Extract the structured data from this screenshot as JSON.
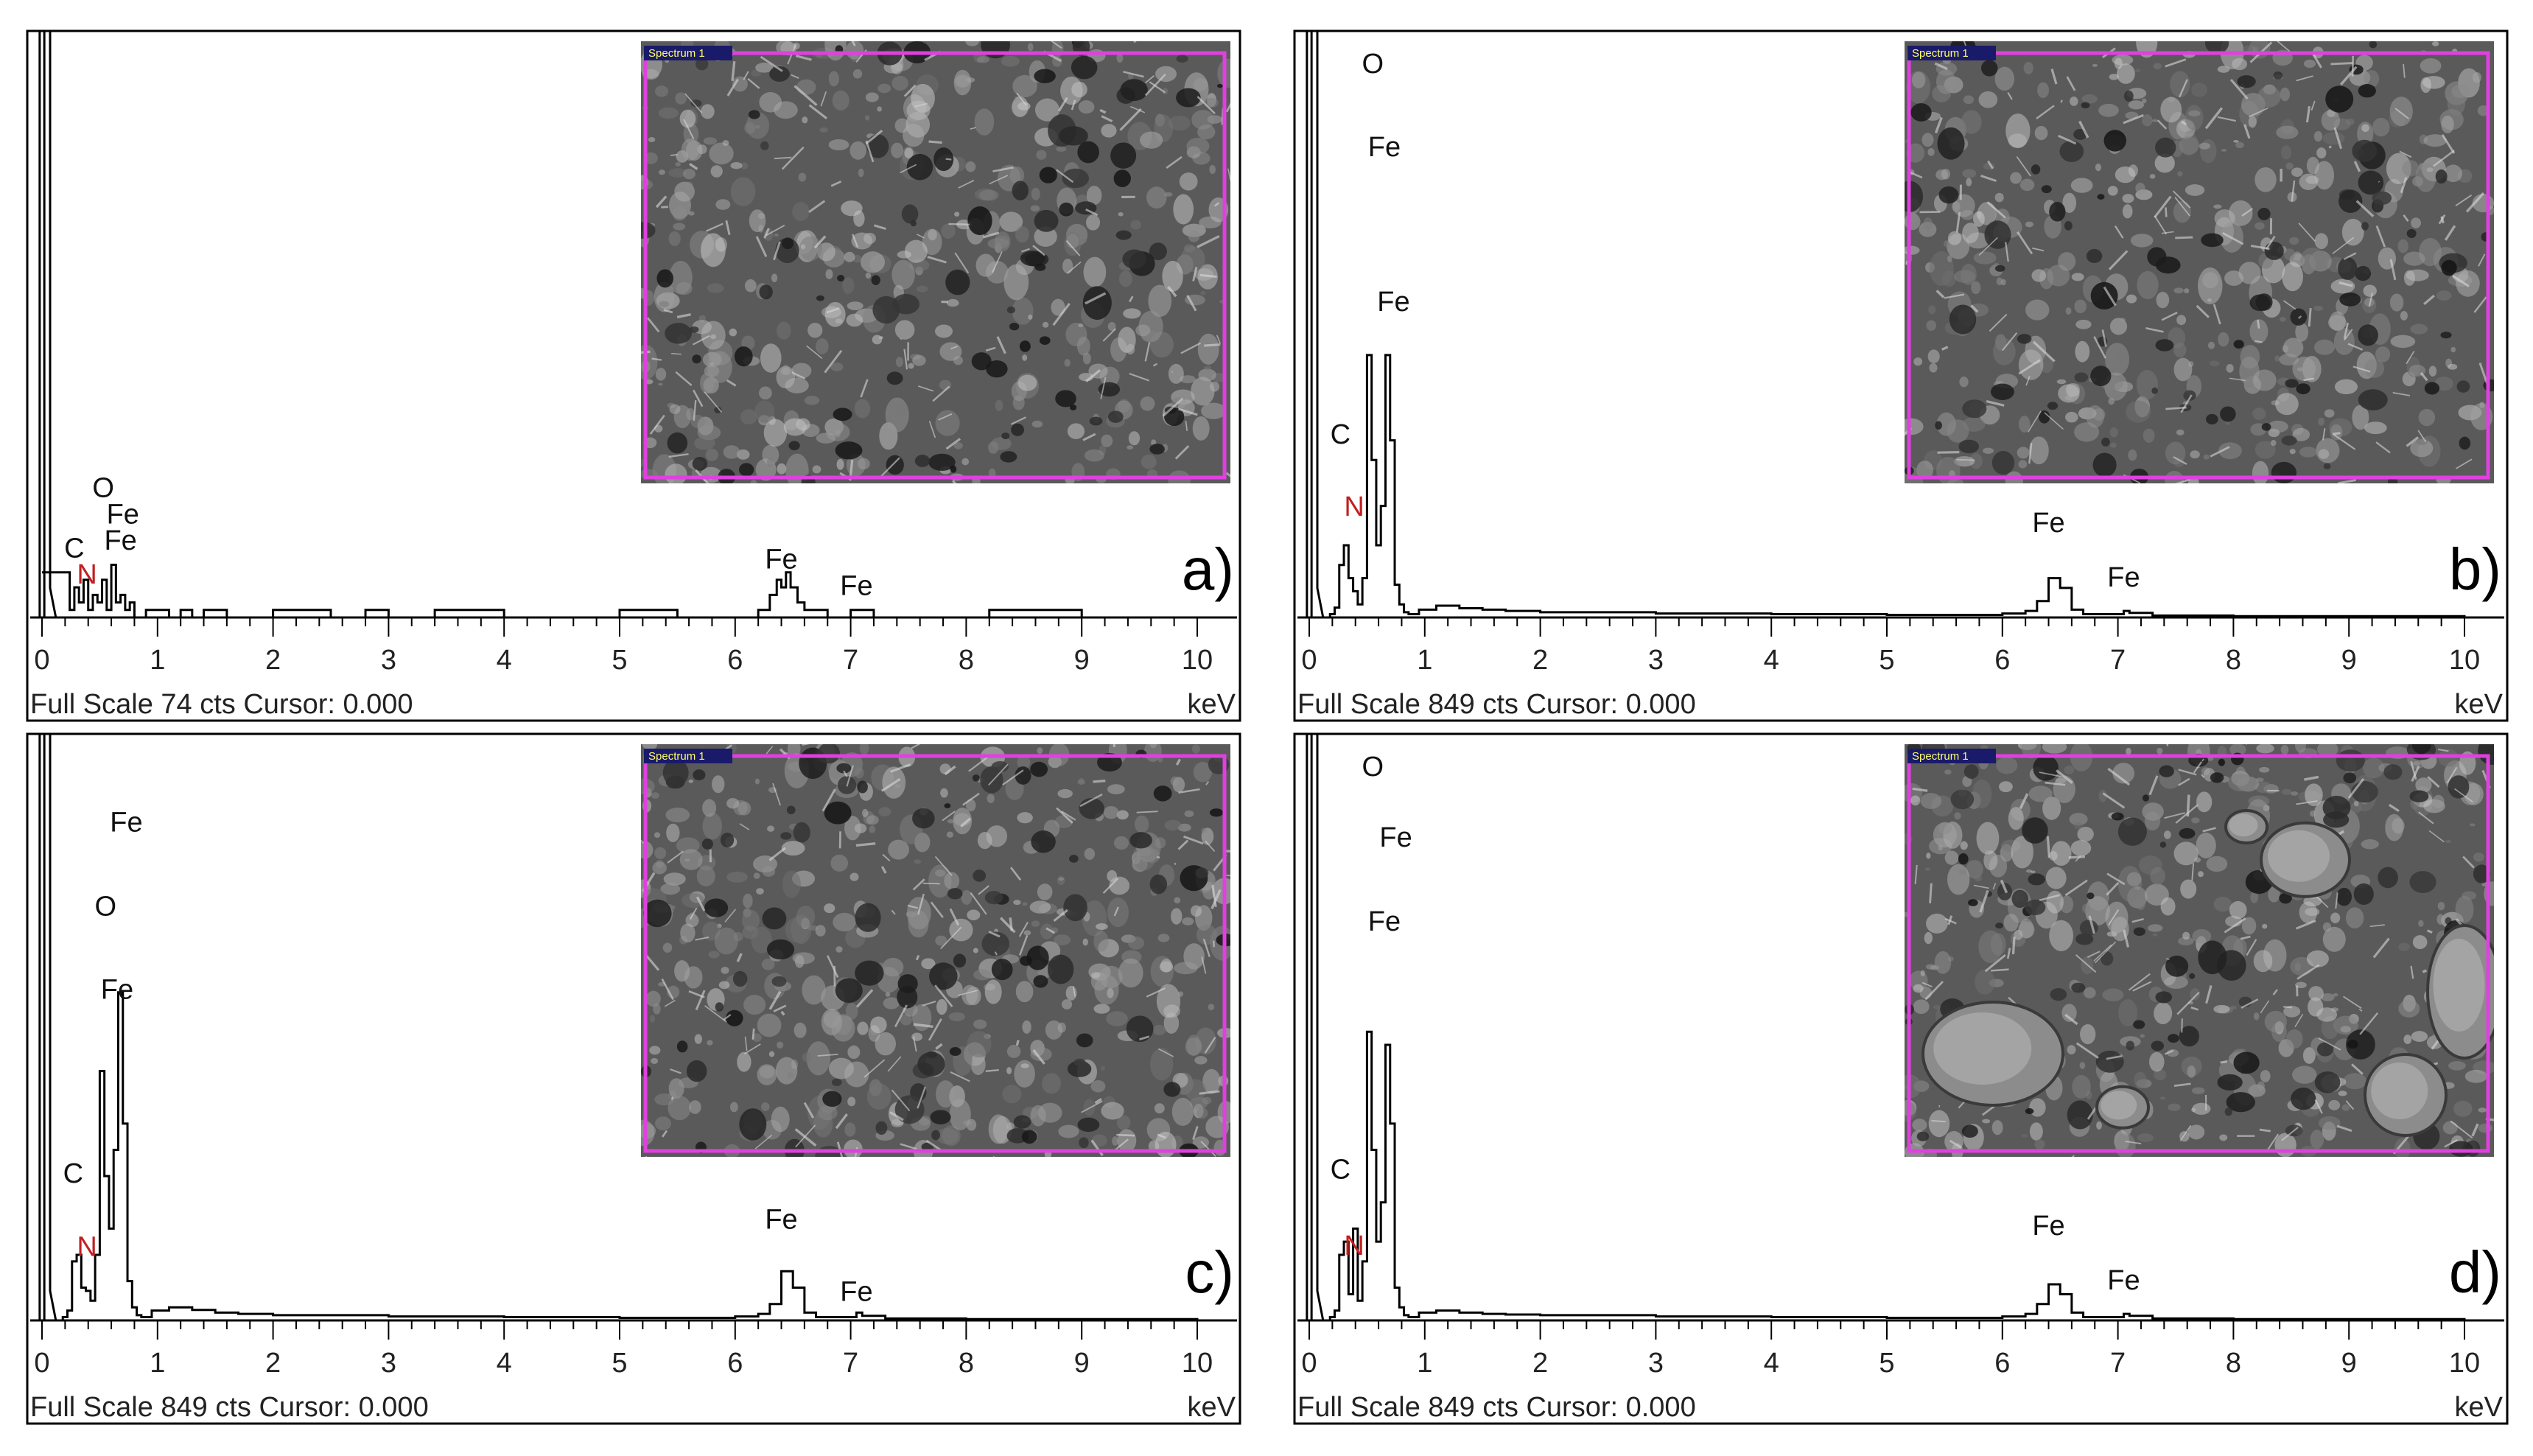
{
  "colors": {
    "spectrum": "#000000",
    "frame": "#000000",
    "inset_border": "#e040e0",
    "inset_bg": "#5a5a5a",
    "inset_tag_bg": "#1a1a6a"
  },
  "chart_data": [
    {
      "type": "line",
      "panel_label": "a)",
      "footer": "Full Scale 74 cts Cursor: 0.000",
      "x_unit": "keV",
      "xlim": [
        0,
        10
      ],
      "x_ticks": [
        "0",
        "1",
        "2",
        "3",
        "4",
        "5",
        "6",
        "7",
        "8",
        "9",
        "10"
      ],
      "full_scale_cts": 74,
      "inset_tag": "Spectrum 1",
      "x": [
        0.0,
        0.06,
        0.12,
        0.18,
        0.24,
        0.28,
        0.32,
        0.36,
        0.4,
        0.44,
        0.48,
        0.52,
        0.56,
        0.6,
        0.64,
        0.68,
        0.72,
        0.76,
        0.8,
        0.9,
        1.0,
        1.1,
        1.2,
        1.3,
        1.4,
        1.6,
        2.0,
        2.5,
        2.8,
        3.0,
        3.4,
        3.8,
        4.0,
        4.5,
        5.0,
        5.2,
        5.5,
        6.0,
        6.2,
        6.3,
        6.36,
        6.4,
        6.44,
        6.48,
        6.54,
        6.6,
        6.8,
        7.0,
        7.1,
        7.2,
        8.0,
        8.2,
        9.0,
        10.0
      ],
      "y": [
        6,
        6,
        6,
        6,
        1,
        4,
        2,
        5,
        1,
        3,
        2,
        5,
        1,
        7,
        2,
        3,
        1,
        2,
        0,
        1,
        1,
        0,
        1,
        0,
        1,
        0,
        1,
        0,
        1,
        0,
        1,
        1,
        0,
        0,
        1,
        1,
        0,
        0,
        1,
        3,
        5,
        4,
        6,
        4,
        2,
        1,
        0,
        1,
        1,
        0,
        0,
        1,
        0,
        0
      ],
      "zero_peak_counts": 1000,
      "peak_labels": [
        {
          "text": "O",
          "x": 0.53,
          "y": 16
        },
        {
          "text": "Fe",
          "x": 0.7,
          "y": 12.5
        },
        {
          "text": "Fe",
          "x": 0.68,
          "y": 9
        },
        {
          "text": "C",
          "x": 0.28,
          "y": 8
        },
        {
          "text": "N",
          "x": 0.39,
          "y": 4.5
        },
        {
          "text": "Fe",
          "x": 6.4,
          "y": 6.5
        },
        {
          "text": "Fe",
          "x": 7.05,
          "y": 3
        }
      ]
    },
    {
      "type": "line",
      "panel_label": "b)",
      "footer": "Full Scale 849 cts Cursor: 0.000",
      "x_unit": "keV",
      "xlim": [
        0,
        10
      ],
      "x_ticks": [
        "0",
        "1",
        "2",
        "3",
        "4",
        "5",
        "6",
        "7",
        "8",
        "9",
        "10"
      ],
      "full_scale_cts": 849,
      "inset_tag": "Spectrum 1",
      "x": [
        0.0,
        0.12,
        0.18,
        0.22,
        0.26,
        0.3,
        0.34,
        0.38,
        0.42,
        0.46,
        0.5,
        0.54,
        0.58,
        0.62,
        0.66,
        0.7,
        0.74,
        0.78,
        0.82,
        0.86,
        0.95,
        1.1,
        1.3,
        1.5,
        1.7,
        2.0,
        3.0,
        4.0,
        5.0,
        6.0,
        6.2,
        6.3,
        6.4,
        6.5,
        6.6,
        6.7,
        7.0,
        7.05,
        7.1,
        7.3,
        8.0,
        10.0
      ],
      "y": [
        0,
        0,
        5,
        15,
        80,
        110,
        60,
        40,
        20,
        60,
        400,
        240,
        110,
        170,
        400,
        270,
        50,
        20,
        8,
        5,
        12,
        18,
        14,
        12,
        10,
        8,
        6,
        5,
        4,
        6,
        10,
        25,
        60,
        45,
        12,
        5,
        5,
        10,
        7,
        3,
        2,
        1
      ],
      "zero_peak_counts": 10000,
      "peak_labels": [
        {
          "text": "O",
          "x": 0.55,
          "y": 830
        },
        {
          "text": "Fe",
          "x": 0.65,
          "y": 703
        },
        {
          "text": "Fe",
          "x": 0.73,
          "y": 467
        },
        {
          "text": "C",
          "x": 0.27,
          "y": 265
        },
        {
          "text": "N",
          "x": 0.39,
          "y": 155
        },
        {
          "text": "Fe",
          "x": 6.4,
          "y": 130
        },
        {
          "text": "Fe",
          "x": 7.05,
          "y": 47
        }
      ]
    },
    {
      "type": "line",
      "panel_label": "c)",
      "footer": "Full Scale 849 cts Cursor: 0.000",
      "x_unit": "keV",
      "xlim": [
        0,
        10
      ],
      "x_ticks": [
        "0",
        "1",
        "2",
        "3",
        "4",
        "5",
        "6",
        "7",
        "8",
        "9",
        "10"
      ],
      "full_scale_cts": 849,
      "inset_tag": "Spectrum 1",
      "x": [
        0.0,
        0.12,
        0.18,
        0.22,
        0.26,
        0.3,
        0.34,
        0.38,
        0.42,
        0.46,
        0.5,
        0.54,
        0.58,
        0.62,
        0.66,
        0.7,
        0.74,
        0.78,
        0.82,
        0.86,
        0.95,
        1.1,
        1.3,
        1.5,
        1.7,
        2.0,
        3.0,
        4.0,
        5.0,
        6.0,
        6.2,
        6.3,
        6.4,
        6.5,
        6.6,
        6.7,
        7.0,
        7.05,
        7.1,
        7.3,
        8.0,
        10.0
      ],
      "y": [
        0,
        0,
        5,
        15,
        90,
        100,
        50,
        45,
        30,
        100,
        380,
        220,
        140,
        260,
        500,
        300,
        60,
        20,
        8,
        5,
        15,
        20,
        16,
        12,
        10,
        8,
        6,
        5,
        4,
        6,
        10,
        25,
        75,
        50,
        12,
        5,
        5,
        12,
        7,
        3,
        2,
        1
      ],
      "zero_peak_counts": 10000,
      "peak_labels": [
        {
          "text": "Fe",
          "x": 0.73,
          "y": 745
        },
        {
          "text": "O",
          "x": 0.55,
          "y": 617
        },
        {
          "text": "Fe",
          "x": 0.65,
          "y": 490
        },
        {
          "text": "C",
          "x": 0.27,
          "y": 210
        },
        {
          "text": "N",
          "x": 0.39,
          "y": 98
        },
        {
          "text": "Fe",
          "x": 6.4,
          "y": 140
        },
        {
          "text": "Fe",
          "x": 7.05,
          "y": 30
        }
      ]
    },
    {
      "type": "line",
      "panel_label": "d)",
      "footer": "Full Scale 849 cts Cursor: 0.000",
      "x_unit": "keV",
      "xlim": [
        0,
        10
      ],
      "x_ticks": [
        "0",
        "1",
        "2",
        "3",
        "4",
        "5",
        "6",
        "7",
        "8",
        "9",
        "10"
      ],
      "full_scale_cts": 849,
      "inset_tag": "Spectrum 1",
      "x": [
        0.0,
        0.12,
        0.18,
        0.22,
        0.26,
        0.3,
        0.34,
        0.38,
        0.42,
        0.46,
        0.5,
        0.54,
        0.58,
        0.62,
        0.66,
        0.7,
        0.74,
        0.78,
        0.82,
        0.86,
        0.95,
        1.1,
        1.3,
        1.5,
        1.7,
        2.0,
        3.0,
        4.0,
        5.0,
        6.0,
        6.2,
        6.3,
        6.4,
        6.5,
        6.6,
        6.7,
        7.0,
        7.05,
        7.1,
        7.3,
        8.0,
        10.0
      ],
      "y": [
        0,
        0,
        5,
        15,
        100,
        120,
        40,
        140,
        30,
        90,
        440,
        260,
        120,
        180,
        420,
        300,
        50,
        20,
        8,
        5,
        12,
        15,
        12,
        10,
        9,
        8,
        6,
        5,
        4,
        6,
        10,
        25,
        55,
        40,
        12,
        5,
        5,
        10,
        7,
        3,
        2,
        1
      ],
      "zero_peak_counts": 10000,
      "peak_labels": [
        {
          "text": "O",
          "x": 0.55,
          "y": 830
        },
        {
          "text": "Fe",
          "x": 0.75,
          "y": 722
        },
        {
          "text": "Fe",
          "x": 0.65,
          "y": 594
        },
        {
          "text": "C",
          "x": 0.27,
          "y": 216
        },
        {
          "text": "N",
          "x": 0.39,
          "y": 100
        },
        {
          "text": "Fe",
          "x": 6.4,
          "y": 130
        },
        {
          "text": "Fe",
          "x": 7.05,
          "y": 47
        }
      ]
    }
  ]
}
